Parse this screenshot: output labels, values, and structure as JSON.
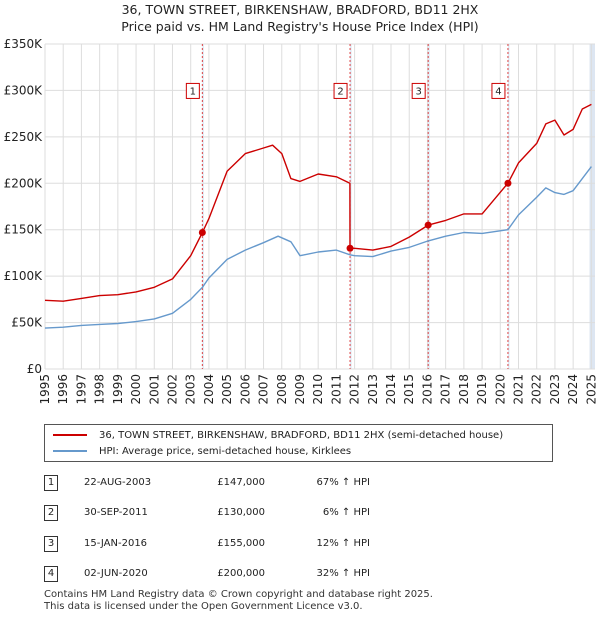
{
  "header": {
    "title_line1": "36, TOWN STREET, BIRKENSHAW, BRADFORD, BD11 2HX",
    "title_line2": "Price paid vs. HM Land Registry's House Price Index (HPI)"
  },
  "legend": {
    "property_label": "36, TOWN STREET, BIRKENSHAW, BRADFORD, BD11 2HX (semi-detached house)",
    "hpi_label": "HPI: Average price, semi-detached house, Kirklees"
  },
  "colors": {
    "property": "#cc0000",
    "hpi": "#6699cc",
    "shade": "#dde6f2",
    "grid": "#dddddd"
  },
  "transactions": [
    {
      "num": "1",
      "date": "22-AUG-2003",
      "price": "£147,000",
      "hpi_change": "67% ↑ HPI"
    },
    {
      "num": "2",
      "date": "30-SEP-2011",
      "price": "£130,000",
      "hpi_change": "6% ↑ HPI"
    },
    {
      "num": "3",
      "date": "15-JAN-2016",
      "price": "£155,000",
      "hpi_change": "12% ↑ HPI"
    },
    {
      "num": "4",
      "date": "02-JUN-2020",
      "price": "£200,000",
      "hpi_change": "32% ↑ HPI"
    }
  ],
  "footer": {
    "line1": "Contains HM Land Registry data © Crown copyright and database right 2025.",
    "line2": "This data is licensed under the Open Government Licence v3.0."
  },
  "chart_data": {
    "type": "line",
    "title": "36, TOWN STREET, BIRKENSHAW, BRADFORD, BD11 2HX",
    "subtitle": "Price paid vs. HM Land Registry's House Price Index (HPI)",
    "xlabel": "",
    "ylabel": "",
    "xlim": [
      1995,
      2025.2
    ],
    "ylim": [
      0,
      350000
    ],
    "grid": true,
    "y_ticks": [
      {
        "value": 0,
        "label": "£0"
      },
      {
        "value": 50000,
        "label": "£50K"
      },
      {
        "value": 100000,
        "label": "£100K"
      },
      {
        "value": 150000,
        "label": "£150K"
      },
      {
        "value": 200000,
        "label": "£200K"
      },
      {
        "value": 250000,
        "label": "£250K"
      },
      {
        "value": 300000,
        "label": "£300K"
      },
      {
        "value": 350000,
        "label": "£350K"
      }
    ],
    "x_ticks": [
      "1995",
      "1996",
      "1997",
      "1998",
      "1999",
      "2000",
      "2001",
      "2002",
      "2003",
      "2004",
      "2005",
      "2006",
      "2007",
      "2008",
      "2009",
      "2010",
      "2011",
      "2012",
      "2013",
      "2014",
      "2015",
      "2016",
      "2017",
      "2018",
      "2019",
      "2020",
      "2021",
      "2022",
      "2023",
      "2024",
      "2025"
    ],
    "series": [
      {
        "name": "36, TOWN STREET, BIRKENSHAW, BRADFORD, BD11 2HX (semi-detached house)",
        "x": [
          1995,
          1996,
          1997,
          1998,
          1999,
          2000,
          2001,
          2002,
          2003,
          2003.64,
          2004,
          2005,
          2006,
          2007,
          2007.5,
          2008,
          2008.5,
          2009,
          2010,
          2011,
          2011.74,
          2011.75,
          2012,
          2013,
          2014,
          2015,
          2016.04,
          2017,
          2018,
          2019,
          2020.41,
          2020.42,
          2021,
          2022,
          2022.5,
          2023,
          2023.5,
          2024,
          2024.5,
          2025
        ],
        "values": [
          74000,
          73000,
          76000,
          79000,
          80000,
          83000,
          88000,
          97000,
          122000,
          147000,
          162000,
          213000,
          232000,
          238000,
          241000,
          232000,
          205000,
          202000,
          210000,
          207000,
          200000,
          130000,
          130000,
          128000,
          132000,
          142000,
          155000,
          160000,
          167000,
          167000,
          200000,
          200000,
          222000,
          243000,
          264000,
          268000,
          252000,
          258000,
          280000,
          285000
        ]
      },
      {
        "name": "HPI: Average price, semi-detached house, Kirklees",
        "x": [
          1995,
          1996,
          1997,
          1998,
          1999,
          2000,
          2001,
          2002,
          2003,
          2003.64,
          2004,
          2005,
          2006,
          2007,
          2007.8,
          2008.5,
          2009,
          2010,
          2011,
          2011.75,
          2012,
          2013,
          2014,
          2015,
          2016.04,
          2017,
          2018,
          2019,
          2020.42,
          2021,
          2022,
          2022.5,
          2023,
          2023.5,
          2024,
          2025
        ],
        "values": [
          44000,
          45000,
          47000,
          48000,
          49000,
          51000,
          54000,
          60000,
          75000,
          88000,
          98000,
          118000,
          128000,
          136000,
          143000,
          137000,
          122000,
          126000,
          128000,
          123000,
          122000,
          121000,
          127000,
          131000,
          138000,
          143000,
          147000,
          146000,
          150000,
          166000,
          185000,
          195000,
          190000,
          188000,
          192000,
          218000
        ]
      }
    ],
    "markers": [
      {
        "label": "1",
        "x": 2003.64,
        "y": 147000
      },
      {
        "label": "2",
        "x": 2011.75,
        "y": 130000
      },
      {
        "label": "3",
        "x": 2016.04,
        "y": 155000
      },
      {
        "label": "4",
        "x": 2020.42,
        "y": 200000
      }
    ],
    "marker_label_y": 300000,
    "shaded_ranges": [
      [
        2003.64,
        2003.64
      ],
      [
        2011.75,
        2011.75
      ],
      [
        2016.04,
        2016.04
      ],
      [
        2020.42,
        2020.42
      ],
      [
        2024.9,
        2025.2
      ]
    ]
  }
}
